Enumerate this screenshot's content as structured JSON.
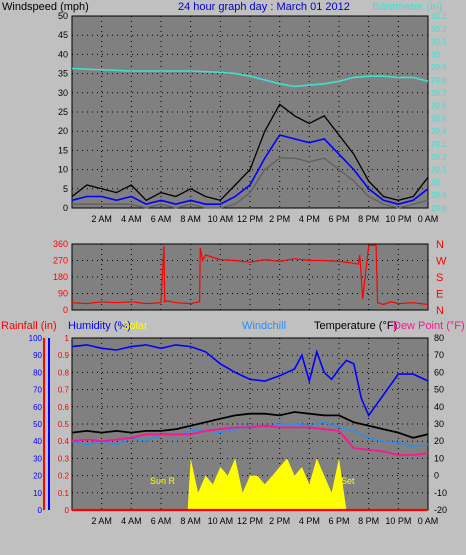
{
  "header": {
    "left_label": "Windspeed (mph)",
    "title": "24 hour graph day : March 01 2012",
    "right_label": "Barometer (in)"
  },
  "colors": {
    "background": "#c0c0c0",
    "plot_background": "#808080",
    "grid": "#000000",
    "barometer": "#40e0d0",
    "gust": "#000000",
    "wind_avg": "#0000ff",
    "wind_gray": "#606060",
    "wind_dir": "#ff0000",
    "humidity": "#0000ff",
    "solar": "#ffff00",
    "windchill": "#1e90ff",
    "temperature": "#000000",
    "dew_point": "#ff1493",
    "rainfall": "#ff0000"
  },
  "bottom_header": {
    "rainfall": "Rainfall (in)",
    "humidity": "Humidity (%)",
    "solar": "Solar",
    "windchill": "Windchill",
    "temperature": "Temperature (°F)",
    "dew_point": "Dew Point (°F)"
  },
  "annotations": {
    "sunrise": "Sun R",
    "sunset": "Set"
  },
  "chart_data": [
    {
      "type": "line",
      "panel": "wind_barometer",
      "x_ticks": [
        "2 AM",
        "4 AM",
        "6 AM",
        "8 AM",
        "10 AM",
        "12 PM",
        "2 PM",
        "4 PM",
        "6 PM",
        "8 PM",
        "10 PM",
        "0 AM"
      ],
      "xlim": [
        0,
        24
      ],
      "ylim_left": [
        0,
        50
      ],
      "y_ticks_left": [
        "0",
        "5",
        "10",
        "15",
        "20",
        "25",
        "30",
        "35",
        "40",
        "45",
        "50"
      ],
      "ylim_right": [
        28.8,
        30.3
      ],
      "y_ticks_right": [
        "28.8",
        "28.9",
        "29",
        "29.1",
        "29.2",
        "29.3",
        "29.4",
        "29.5",
        "29.6",
        "29.7",
        "29.8",
        "29.9",
        "30",
        "30.1",
        "30.2",
        "30.3"
      ],
      "grid": true,
      "series": [
        {
          "key": "barometer",
          "axis": "right",
          "x": [
            0,
            2,
            4,
            6,
            8,
            10,
            11,
            12,
            13,
            14,
            15,
            16,
            17,
            18,
            19,
            20,
            21,
            22,
            23,
            24
          ],
          "values": [
            29.89,
            29.88,
            29.87,
            29.87,
            29.87,
            29.86,
            29.85,
            29.83,
            29.8,
            29.77,
            29.75,
            29.76,
            29.77,
            29.79,
            29.82,
            29.83,
            29.83,
            29.82,
            29.82,
            29.79
          ]
        },
        {
          "key": "gust",
          "axis": "left",
          "x": [
            0,
            1,
            2,
            3,
            4,
            5,
            6,
            7,
            8,
            9,
            10,
            11,
            12,
            13,
            14,
            15,
            16,
            17,
            18,
            19,
            20,
            21,
            22,
            23,
            24
          ],
          "values": [
            3,
            6,
            5,
            4,
            6,
            2,
            4,
            3,
            5,
            3,
            2,
            6,
            10,
            20,
            27,
            24,
            22,
            24,
            19,
            14,
            7,
            3,
            2,
            3,
            8
          ]
        },
        {
          "key": "wind_avg",
          "axis": "left",
          "x": [
            0,
            1,
            2,
            3,
            4,
            5,
            6,
            7,
            8,
            9,
            10,
            11,
            12,
            13,
            14,
            15,
            16,
            17,
            18,
            19,
            20,
            21,
            22,
            23,
            24
          ],
          "values": [
            2,
            3,
            3,
            2,
            3,
            1,
            2,
            1,
            2,
            1,
            1,
            3,
            6,
            13,
            19,
            18,
            17,
            18,
            14,
            10,
            5,
            2,
            1,
            2,
            5
          ]
        },
        {
          "key": "wind_gray",
          "axis": "left",
          "x": [
            0,
            1,
            2,
            3,
            4,
            5,
            6,
            7,
            8,
            9,
            10,
            11,
            12,
            13,
            14,
            15,
            16,
            17,
            18,
            19,
            20,
            21,
            22,
            23,
            24
          ],
          "values": [
            1,
            1,
            1,
            1,
            1,
            0,
            1,
            0,
            1,
            0,
            0,
            1,
            4,
            10,
            13,
            13,
            12,
            13,
            10,
            7,
            3,
            1,
            0,
            1,
            2
          ]
        }
      ]
    },
    {
      "type": "line",
      "panel": "wind_direction",
      "ylim": [
        0,
        360
      ],
      "y_ticks": [
        "0",
        "90",
        "180",
        "270",
        "360"
      ],
      "compass_labels": [
        "N",
        "W",
        "S",
        "E",
        "N"
      ],
      "grid": true,
      "series": [
        {
          "key": "wind_dir",
          "x": [
            0,
            1,
            2,
            3,
            4,
            5,
            6,
            6.2,
            6.25,
            6.4,
            7,
            8,
            8.6,
            8.65,
            8.8,
            9,
            10,
            11,
            12,
            13,
            14,
            15,
            16,
            17,
            18,
            19,
            19.3,
            19.4,
            19.6,
            20,
            20.5,
            20.6,
            21,
            21.5,
            22,
            23,
            24
          ],
          "values": [
            40,
            35,
            45,
            40,
            45,
            35,
            40,
            350,
            45,
            50,
            40,
            35,
            45,
            340,
            270,
            300,
            275,
            270,
            260,
            275,
            265,
            280,
            270,
            270,
            265,
            255,
            250,
            300,
            60,
            350,
            355,
            40,
            30,
            45,
            35,
            40,
            30
          ]
        }
      ]
    },
    {
      "type": "line",
      "panel": "temperature_humidity",
      "ylim_left": [
        0,
        1.0
      ],
      "y_ticks_left": [
        "0",
        "0.1",
        "0.2",
        "0.3",
        "0.4",
        "0.5",
        "0.6",
        "0.7",
        "0.8",
        "0.9",
        "1"
      ],
      "ylim_humidity": [
        0,
        100
      ],
      "y_ticks_humidity": [
        "0",
        "10",
        "20",
        "30",
        "40",
        "50",
        "60",
        "70",
        "80",
        "90",
        "100"
      ],
      "ylim_temp": [
        -20,
        80
      ],
      "y_ticks_temp": [
        "-20",
        "-10",
        "0",
        "10",
        "20",
        "30",
        "40",
        "50",
        "60",
        "70",
        "80"
      ],
      "grid": true,
      "series": [
        {
          "key": "humidity",
          "axis": "humidity",
          "x": [
            0,
            1,
            2,
            3,
            4,
            5,
            6,
            7,
            8,
            9,
            10,
            11,
            12,
            13,
            14,
            15,
            15.5,
            16,
            16.5,
            17,
            17.5,
            18,
            18.5,
            19,
            19.5,
            20,
            21,
            22,
            23,
            24
          ],
          "values": [
            95,
            96,
            94,
            93,
            95,
            96,
            94,
            96,
            95,
            92,
            85,
            80,
            76,
            75,
            78,
            82,
            90,
            75,
            92,
            80,
            76,
            82,
            87,
            85,
            65,
            55,
            67,
            79,
            79,
            75
          ]
        },
        {
          "key": "solar",
          "axis": "left",
          "x": [
            0,
            7.8,
            8,
            8.5,
            9,
            9.5,
            10,
            10.5,
            11,
            11.5,
            12,
            12.5,
            13,
            13.5,
            14,
            14.5,
            15,
            15.5,
            16,
            16.5,
            17,
            17.5,
            18,
            18.5,
            24
          ],
          "values": [
            0,
            0,
            0.3,
            0.1,
            0.2,
            0.15,
            0.25,
            0.2,
            0.3,
            0.1,
            0.2,
            0.2,
            0.15,
            0.2,
            0.25,
            0.3,
            0.2,
            0.25,
            0.15,
            0.3,
            0.2,
            0.1,
            0.3,
            0,
            0
          ]
        },
        {
          "key": "windchill",
          "axis": "temp",
          "x": [
            0,
            1,
            2,
            3,
            4,
            5,
            6,
            7,
            8,
            9,
            10,
            11,
            12,
            13,
            14,
            15,
            16,
            17,
            18,
            19,
            20,
            21,
            22,
            23,
            24
          ],
          "values": [
            20,
            18,
            20,
            18,
            22,
            20,
            24,
            23,
            26,
            26,
            25,
            27,
            29,
            28,
            30,
            30,
            29,
            31,
            28,
            26,
            22,
            20,
            19,
            17,
            18
          ]
        },
        {
          "key": "temperature",
          "axis": "temp",
          "x": [
            0,
            1,
            2,
            3,
            4,
            5,
            6,
            7,
            8,
            9,
            10,
            11,
            12,
            13,
            14,
            15,
            16,
            17,
            18,
            19,
            20,
            21,
            22,
            23,
            24
          ],
          "values": [
            25,
            26,
            25,
            26,
            25,
            26,
            26,
            27,
            29,
            31,
            33,
            35,
            36,
            36,
            35,
            37,
            36,
            35,
            35,
            31,
            29,
            27,
            25,
            22,
            24
          ]
        },
        {
          "key": "dew_point",
          "axis": "temp",
          "x": [
            0,
            1,
            2,
            3,
            4,
            5,
            6,
            7,
            8,
            9,
            10,
            11,
            12,
            13,
            14,
            15,
            16,
            17,
            18,
            19,
            20,
            21,
            22,
            23,
            24
          ],
          "values": [
            20,
            21,
            20,
            21,
            22,
            24,
            24,
            24,
            24,
            26,
            27,
            28,
            28,
            29,
            28,
            28,
            28,
            27,
            26,
            16,
            15,
            14,
            12,
            12,
            13
          ]
        },
        {
          "key": "rainfall",
          "axis": "left",
          "x": [
            0,
            24
          ],
          "values": [
            0,
            0
          ]
        }
      ]
    }
  ]
}
